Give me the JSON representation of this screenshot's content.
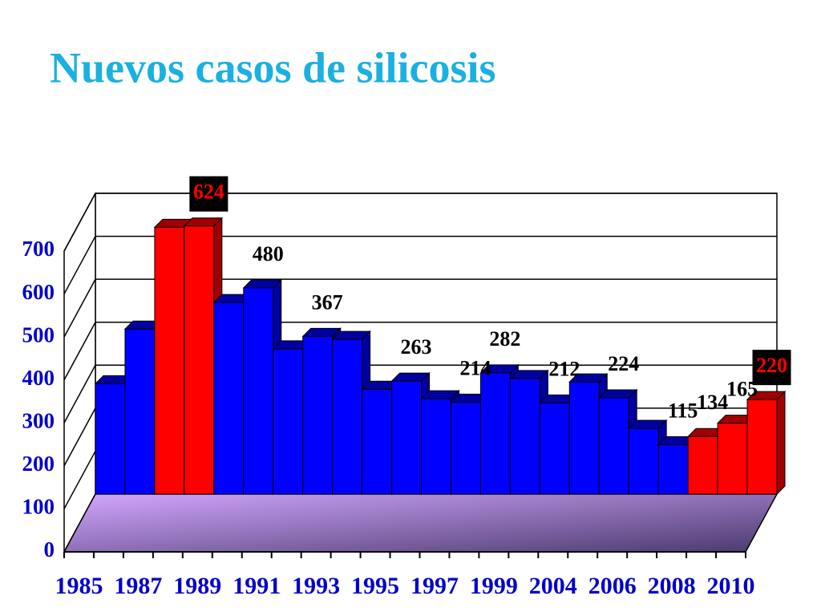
{
  "chart_data": {
    "type": "bar",
    "title": "Nuevos casos de silicosis",
    "categories": [
      "1985",
      null,
      "1987",
      null,
      "1989",
      null,
      "1991",
      null,
      "1993",
      null,
      "1995",
      null,
      "1997",
      null,
      "1999",
      null,
      "2004",
      null,
      "2006",
      null,
      "2008",
      null,
      "2010"
    ],
    "values": [
      257,
      384,
      621,
      624,
      446,
      480,
      338,
      367,
      360,
      244,
      263,
      222,
      214,
      282,
      269,
      212,
      261,
      224,
      153,
      115,
      134,
      165,
      220
    ],
    "value_labels": [
      null,
      null,
      null,
      "624",
      null,
      "480",
      null,
      "367",
      null,
      null,
      "263",
      null,
      "214",
      "282",
      null,
      "212",
      null,
      "224",
      null,
      "115",
      "134",
      "165",
      "220"
    ],
    "colors": [
      "#0000ff",
      "#0000ff",
      "#ff0000",
      "#ff0000",
      "#0000ff",
      "#0000ff",
      "#0000ff",
      "#0000ff",
      "#0000ff",
      "#0000ff",
      "#0000ff",
      "#0000ff",
      "#0000ff",
      "#0000ff",
      "#0000ff",
      "#0000ff",
      "#0000ff",
      "#0000ff",
      "#0000ff",
      "#0000ff",
      "#ff0000",
      "#ff0000",
      "#ff0000"
    ],
    "ylim": [
      0,
      700
    ],
    "yticks": [
      0,
      100,
      200,
      300,
      400,
      500,
      600,
      700
    ],
    "grid": true
  }
}
